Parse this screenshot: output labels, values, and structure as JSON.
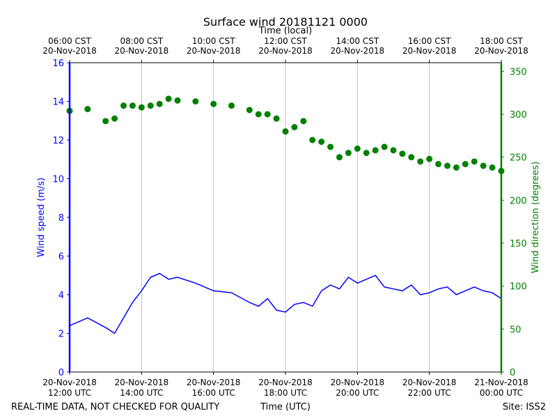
{
  "chart_data": {
    "type": "line",
    "title": "Surface wind 20181121 0000",
    "top_axis_label": "Time (local)",
    "xlabel": "Time (UTC)",
    "ylabel_left": "Wind speed (m/s)",
    "ylabel_right": "Wind direction (degrees)",
    "footer_left": "REAL-TIME DATA, NOT CHECKED FOR QUALITY",
    "footer_right": "Site: ISS2",
    "x_range_hours_utc": [
      12,
      24
    ],
    "ylim_left": [
      0,
      16
    ],
    "ylim_right": [
      0,
      360
    ],
    "y_ticks_left": [
      "0",
      "2",
      "4",
      "6",
      "8",
      "10",
      "12",
      "14",
      "16"
    ],
    "y_ticks_right": [
      "0",
      "50",
      "100",
      "150",
      "200",
      "250",
      "300",
      "350"
    ],
    "x_ticks_utc": [
      {
        "date": "20-Nov-2018",
        "time": "12:00 UTC"
      },
      {
        "date": "20-Nov-2018",
        "time": "14:00 UTC"
      },
      {
        "date": "20-Nov-2018",
        "time": "16:00 UTC"
      },
      {
        "date": "20-Nov-2018",
        "time": "18:00 UTC"
      },
      {
        "date": "20-Nov-2018",
        "time": "20:00 UTC"
      },
      {
        "date": "20-Nov-2018",
        "time": "22:00 UTC"
      },
      {
        "date": "21-Nov-2018",
        "time": "00:00 UTC"
      }
    ],
    "x_ticks_local": [
      {
        "time": "06:00 CST",
        "date": "20-Nov-2018"
      },
      {
        "time": "08:00 CST",
        "date": "20-Nov-2018"
      },
      {
        "time": "10:00 CST",
        "date": "20-Nov-2018"
      },
      {
        "time": "12:00 CST",
        "date": "20-Nov-2018"
      },
      {
        "time": "14:00 CST",
        "date": "20-Nov-2018"
      },
      {
        "time": "16:00 CST",
        "date": "20-Nov-2018"
      },
      {
        "time": "18:00 CST",
        "date": "20-Nov-2018"
      }
    ],
    "grid": "vertical",
    "series": [
      {
        "name": "Wind speed",
        "axis": "left",
        "style": "line",
        "color": "#0000ff",
        "hours_utc": [
          12.0,
          12.5,
          13.0,
          13.25,
          13.5,
          13.75,
          14.0,
          14.25,
          14.5,
          14.75,
          15.0,
          15.5,
          16.0,
          16.5,
          17.0,
          17.25,
          17.5,
          17.75,
          18.0,
          18.25,
          18.5,
          18.75,
          19.0,
          19.25,
          19.5,
          19.75,
          20.0,
          20.25,
          20.5,
          20.75,
          21.0,
          21.25,
          21.5,
          21.75,
          22.0,
          22.25,
          22.5,
          22.75,
          23.0,
          23.25,
          23.5,
          23.75,
          24.0
        ],
        "values": [
          2.4,
          2.8,
          2.3,
          2.0,
          2.8,
          3.6,
          4.2,
          4.9,
          5.1,
          4.8,
          4.9,
          4.6,
          4.2,
          4.1,
          3.6,
          3.4,
          3.8,
          3.2,
          3.1,
          3.5,
          3.6,
          3.4,
          4.2,
          4.5,
          4.3,
          4.9,
          4.6,
          4.8,
          5.0,
          4.4,
          4.3,
          4.2,
          4.5,
          4.0,
          4.1,
          4.3,
          4.4,
          4.0,
          4.2,
          4.4,
          4.2,
          4.1,
          3.8
        ]
      },
      {
        "name": "Wind direction",
        "axis": "right",
        "style": "markers",
        "color": "#008000",
        "hours_utc": [
          12.0,
          12.5,
          13.0,
          13.25,
          13.5,
          13.75,
          14.0,
          14.25,
          14.5,
          14.75,
          15.0,
          15.5,
          16.0,
          16.5,
          17.0,
          17.25,
          17.5,
          17.75,
          18.0,
          18.25,
          18.5,
          18.75,
          19.0,
          19.25,
          19.5,
          19.75,
          20.0,
          20.25,
          20.5,
          20.75,
          21.0,
          21.25,
          21.5,
          21.75,
          22.0,
          22.25,
          22.5,
          22.75,
          23.0,
          23.25,
          23.5,
          23.75,
          24.0
        ],
        "values": [
          304,
          306,
          292,
          295,
          310,
          310,
          308,
          310,
          312,
          318,
          316,
          315,
          312,
          310,
          305,
          300,
          300,
          295,
          280,
          285,
          292,
          270,
          268,
          262,
          250,
          255,
          260,
          255,
          258,
          262,
          258,
          254,
          250,
          245,
          248,
          242,
          240,
          238,
          242,
          245,
          240,
          238,
          234
        ]
      }
    ]
  }
}
